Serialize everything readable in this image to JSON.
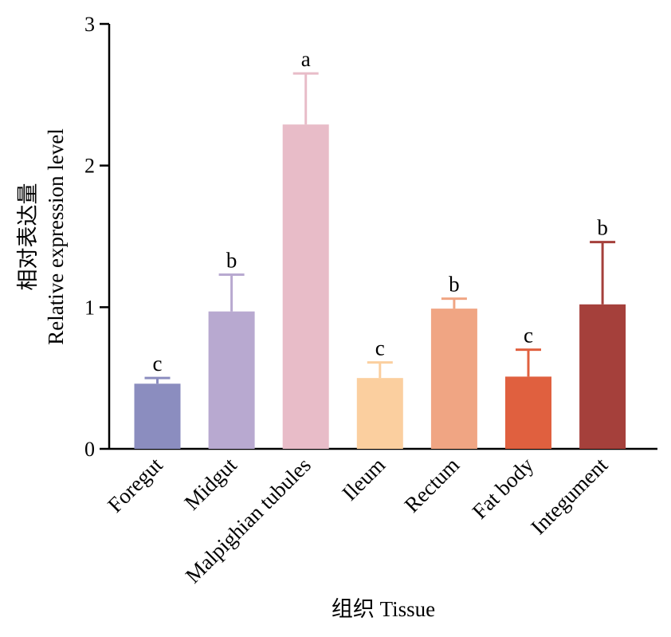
{
  "chart_data": {
    "type": "bar",
    "categories": [
      "Foregut",
      "Midgut",
      "Malpighian tubules",
      "Ileum",
      "Rectum",
      "Fat body",
      "Integument"
    ],
    "values": [
      0.46,
      0.97,
      2.29,
      0.5,
      0.99,
      0.51,
      1.02
    ],
    "error": [
      0.04,
      0.26,
      0.36,
      0.11,
      0.07,
      0.19,
      0.44
    ],
    "significance": [
      "c",
      "b",
      "a",
      "c",
      "b",
      "c",
      "b"
    ],
    "colors": [
      "#8b8dbf",
      "#b8a9d0",
      "#e8bcc8",
      "#fbcf9f",
      "#f0a583",
      "#e0603f",
      "#a5403b"
    ],
    "ylabel_cn": "相对表达量",
    "ylabel": "Relative expression level",
    "xlabel": "组织 Tissue",
    "ylim": [
      0,
      3
    ],
    "yticks": [
      "0",
      "1",
      "2",
      "3"
    ],
    "grid": false,
    "legend": "none"
  }
}
